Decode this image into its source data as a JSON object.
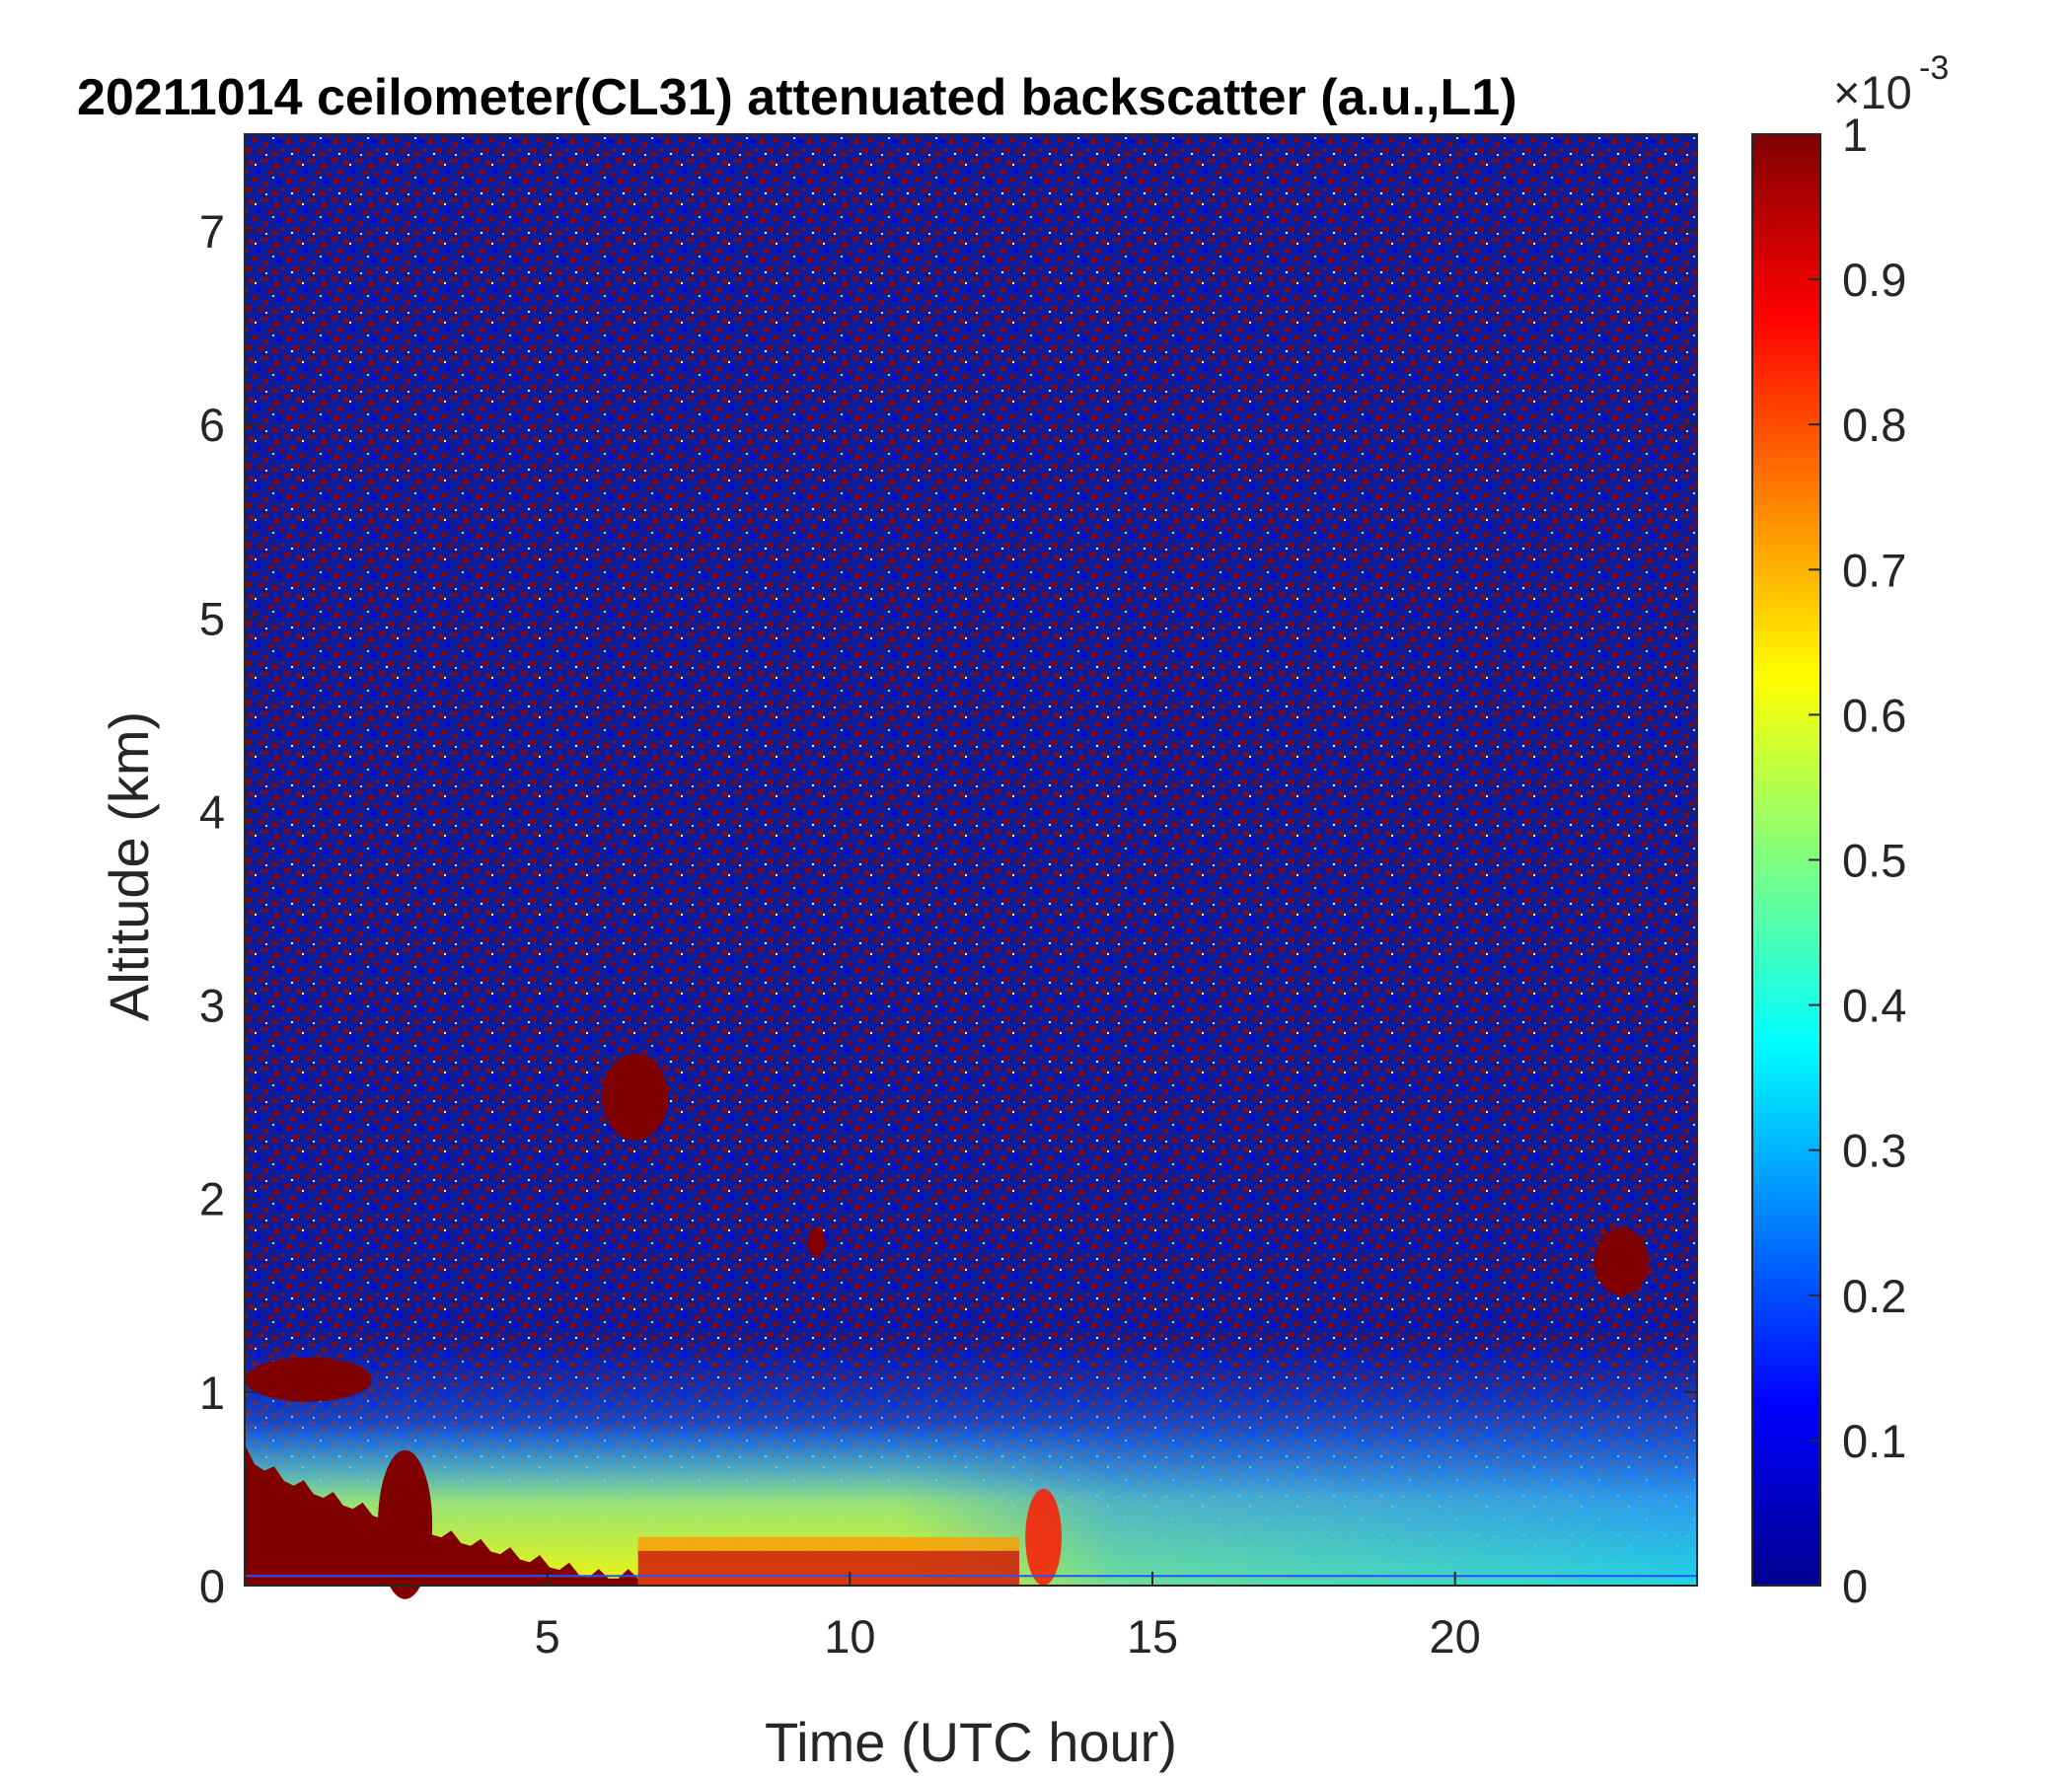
{
  "chart_data": {
    "type": "heatmap",
    "title": "20211014 ceilometer(CL31) attenuated backscatter (a.u.,L1)",
    "xlabel": "Time (UTC hour)",
    "ylabel": "Altitude (km)",
    "xlim": [
      0,
      24
    ],
    "ylim": [
      0,
      7.5
    ],
    "xticks": [
      5,
      10,
      15,
      20
    ],
    "yticks": [
      0,
      1,
      2,
      3,
      4,
      5,
      6,
      7
    ],
    "colorbar": {
      "label": "",
      "range": [
        0,
        1
      ],
      "exponent_base": "×10",
      "exponent": "-3",
      "ticks": [
        0,
        0.1,
        0.2,
        0.3,
        0.4,
        0.5,
        0.6,
        0.7,
        0.8,
        0.9,
        1
      ],
      "colormap": "jet"
    },
    "grid": false,
    "features": [
      {
        "desc": "low cloud / aerosol layer",
        "x": [
          0,
          2.1
        ],
        "y": [
          0.95,
          1.18
        ],
        "value": 1.0
      },
      {
        "desc": "dense near-surface layer",
        "x": [
          0,
          6.5
        ],
        "y": [
          0.0,
          0.7
        ],
        "value": 1.0
      },
      {
        "desc": "plume",
        "x": [
          2.2,
          3.1
        ],
        "y": [
          0.0,
          0.7
        ],
        "value": 1.0
      },
      {
        "desc": "elevated cloud patch",
        "x": [
          5.9,
          7.0
        ],
        "y": [
          2.3,
          2.75
        ],
        "value": 1.0
      },
      {
        "desc": "small cloud patch",
        "x": [
          9.3,
          9.6
        ],
        "y": [
          1.7,
          1.85
        ],
        "value": 1.0
      },
      {
        "desc": "elevated cloud patch",
        "x": [
          22.3,
          23.2
        ],
        "y": [
          1.5,
          1.85
        ],
        "value": 1.0
      },
      {
        "desc": "convective plume",
        "x": [
          12.9,
          13.5
        ],
        "y": [
          0.0,
          0.5
        ],
        "value": 0.85
      }
    ]
  }
}
